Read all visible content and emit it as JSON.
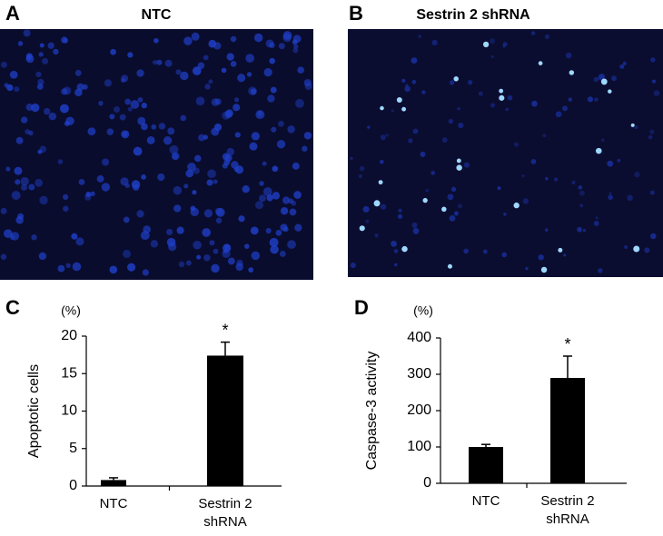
{
  "panels": [
    {
      "label": "A",
      "title": "NTC"
    },
    {
      "label": "B",
      "title": "Sestrin 2 shRNA"
    }
  ],
  "chart_data": [
    {
      "type": "bar",
      "panel": "C",
      "y_unit": "(%)",
      "y_label": "Apoptotic cells",
      "categories": [
        "NTC",
        "Sestrin 2 shRNA"
      ],
      "values": [
        0.8,
        17.4
      ],
      "errors": [
        0.3,
        1.8
      ],
      "color": "#000000",
      "annotation": "*",
      "ylim": [
        0,
        20
      ],
      "yticks": [
        0,
        5,
        10,
        15,
        20
      ]
    },
    {
      "type": "bar",
      "panel": "D",
      "y_unit": "(%)",
      "y_label": "Caspase-3 activity",
      "categories": [
        "NTC",
        "Sestrin 2 shRNA"
      ],
      "values": [
        100,
        290
      ],
      "errors": [
        7,
        60
      ],
      "color": "#000000",
      "annotation": "*",
      "ylim": [
        0,
        400
      ],
      "yticks": [
        0,
        100,
        200,
        300,
        400
      ]
    }
  ]
}
